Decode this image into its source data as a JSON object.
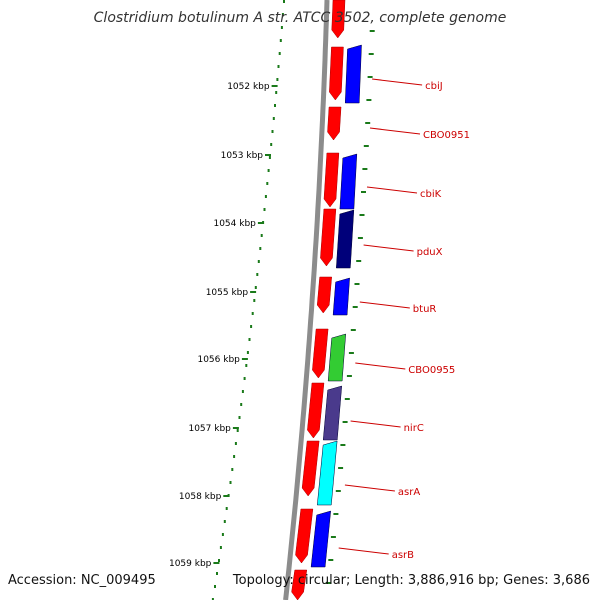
{
  "title": "Clostridium botulinum A str. ATCC 3502, complete genome",
  "footer": {
    "accession": "Accession: NC_009495",
    "topology": "Topology: circular; Length: 3,886,916 bp; Genes: 3,686"
  },
  "colors": {
    "backbone": "#8c8c8c",
    "tick": "#1a7a1a",
    "label": "#cc0000",
    "feature_red": "#ff0000",
    "feature_blue": "#0000ff",
    "feature_navy": "#00007a",
    "feature_green": "#33cc33",
    "feature_purple": "#4a3a8c",
    "feature_cyan": "#00ffff"
  },
  "scale_labels": [
    "1052 kbp",
    "1053 kbp",
    "1054 kbp",
    "1055 kbp",
    "1056 kbp",
    "1057 kbp",
    "1058 kbp",
    "1059 kbp"
  ],
  "genes": [
    {
      "name": "cbiJ",
      "color": "blue"
    },
    {
      "name": "CBO0951",
      "color": "none"
    },
    {
      "name": "cbiK",
      "color": "blue"
    },
    {
      "name": "pduX",
      "color": "navy"
    },
    {
      "name": "btuR",
      "color": "blue"
    },
    {
      "name": "CBO0955",
      "color": "green"
    },
    {
      "name": "nirC",
      "color": "purple"
    },
    {
      "name": "asrA",
      "color": "cyan"
    },
    {
      "name": "asrB",
      "color": "blue"
    }
  ]
}
